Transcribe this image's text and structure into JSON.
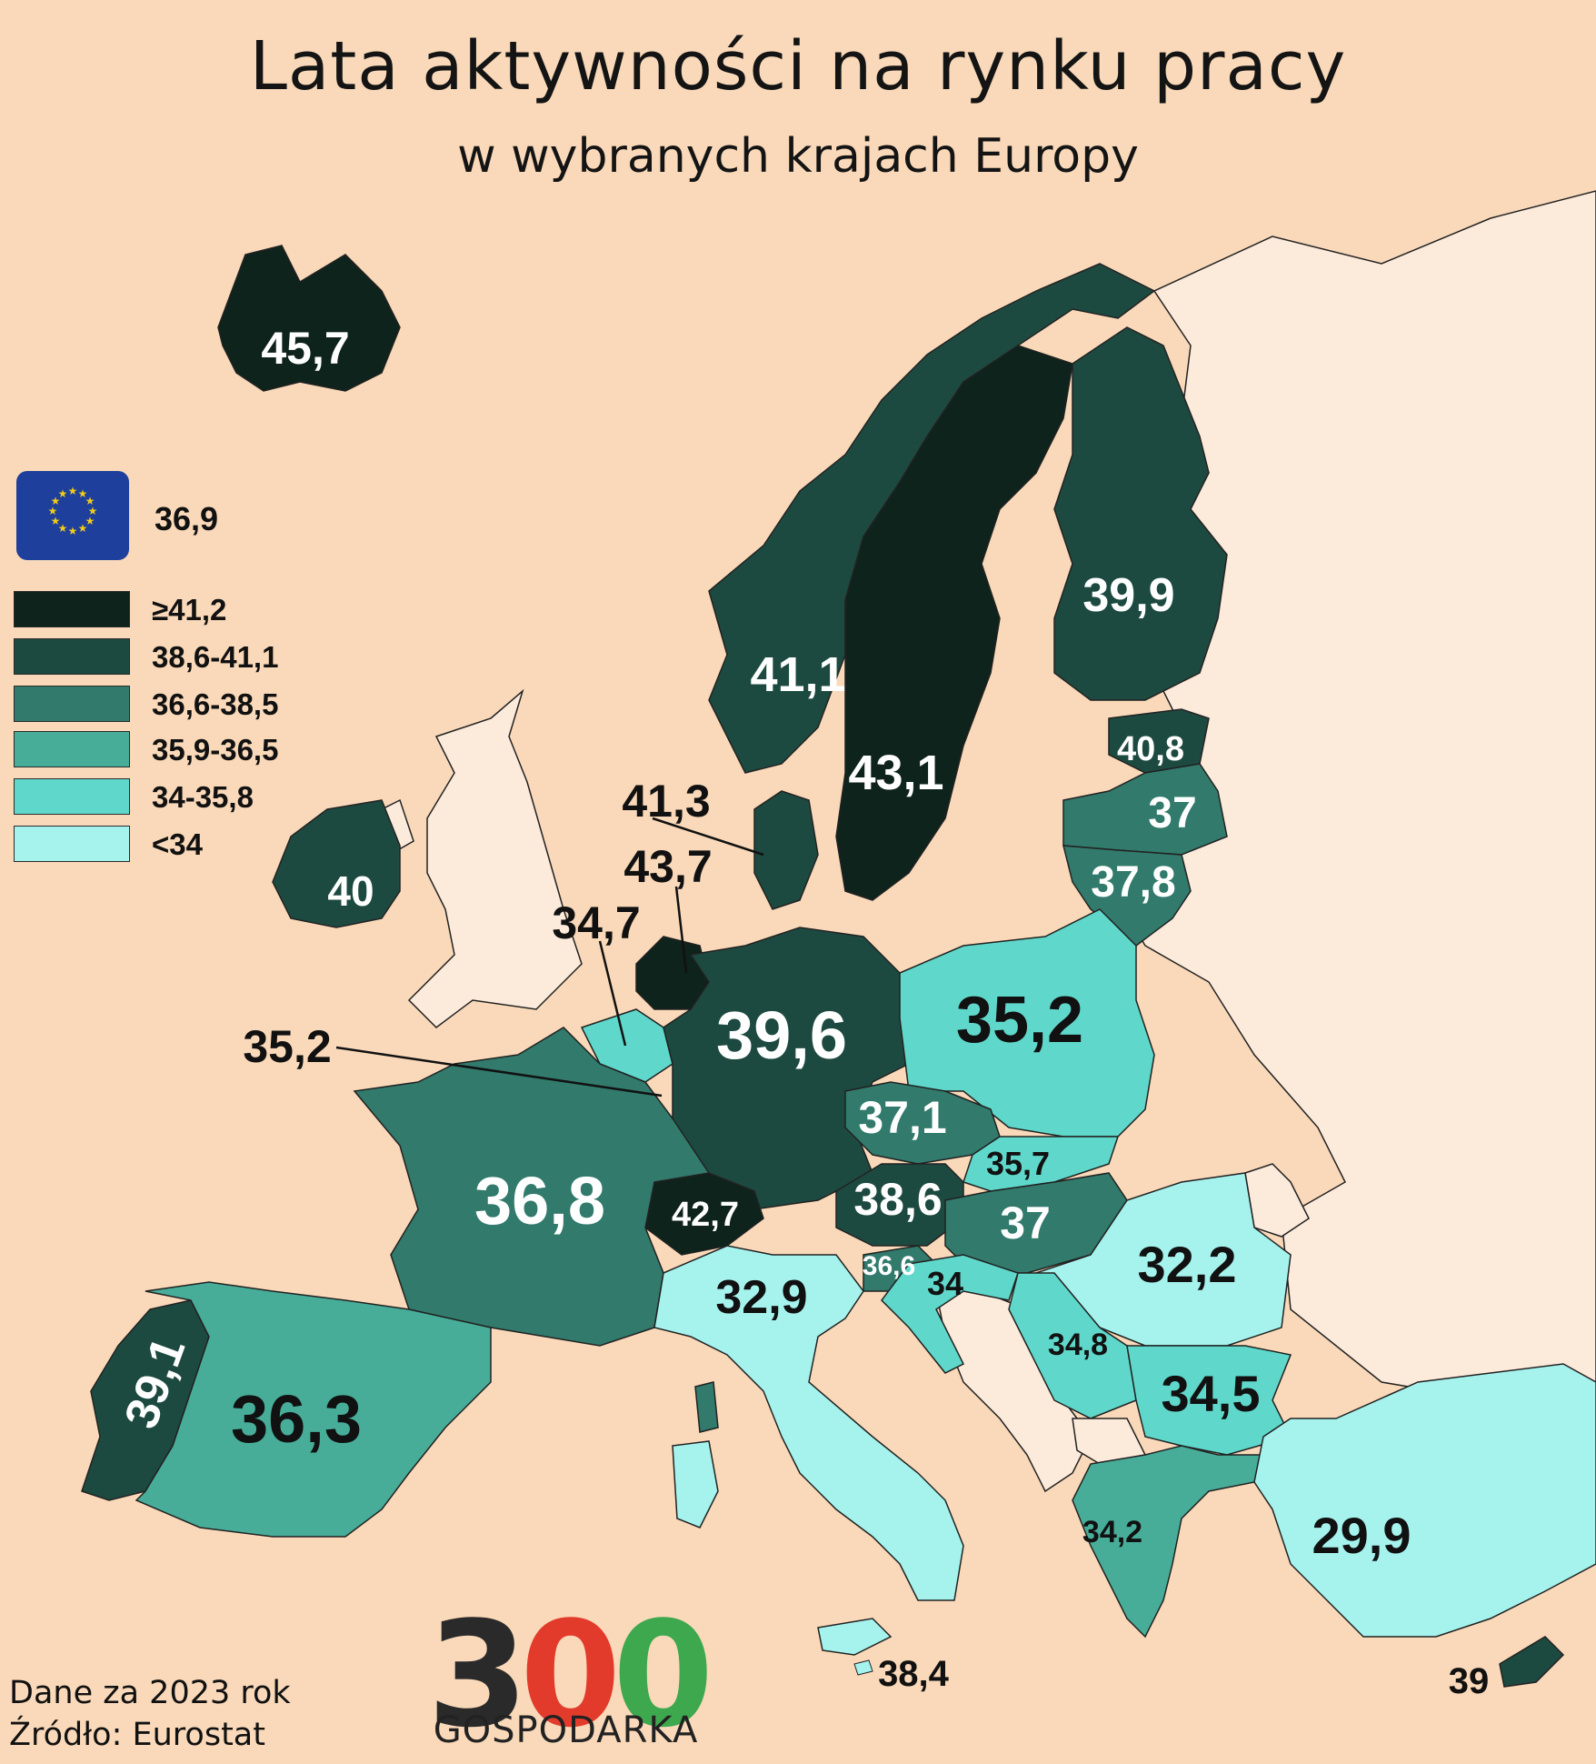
{
  "title": "Lata aktywności na rynku pracy",
  "subtitle": "w wybranych krajach Europy",
  "eu_average": "36,9",
  "legend": [
    {
      "label": "≥41,2",
      "color": "#0d231b"
    },
    {
      "label": "38,6-41,1",
      "color": "#1d4a40"
    },
    {
      "label": "36,6-38,5",
      "color": "#317a6c"
    },
    {
      "label": "35,9-36,5",
      "color": "#47ad99"
    },
    {
      "label": "34-35,8",
      "color": "#5fd8cb"
    },
    {
      "label": "<34",
      "color": "#a6f3ee"
    }
  ],
  "colors": {
    "background": "#f9d9b9",
    "non_covered_land": "#fceadb",
    "logo_dark": "#2a2a2a",
    "logo_red": "#e23b2c",
    "logo_green": "#3ea84f",
    "eu_flag": "#1f3f9c",
    "eu_star": "#f1cc17"
  },
  "countries": {
    "iceland": "45,7",
    "norway": "41,1",
    "sweden": "43,1",
    "finland": "39,9",
    "estonia": "40,8",
    "latvia": "37",
    "lithuania": "37,8",
    "denmark": "41,3",
    "netherlands": "43,7",
    "belgium": "34,7",
    "luxembourg": "35,2",
    "ireland": "40",
    "germany": "39,6",
    "poland": "35,2",
    "czechia": "37,1",
    "slovakia": "35,7",
    "austria": "38,6",
    "hungary": "37",
    "switzerland": "42,7",
    "france": "36,8",
    "slovenia": "36,6",
    "croatia": "34",
    "romania": "32,2",
    "italy": "32,9",
    "serbia": "34,8",
    "bulgaria": "34,5",
    "portugal": "39,1",
    "spain": "36,3",
    "greece": "34,2",
    "turkey": "29,9",
    "malta": "38,4",
    "cyprus": "39"
  },
  "footer": {
    "data_year": "Dane za 2023 rok",
    "source": "Źródło: Eurostat"
  },
  "logo": {
    "digit1": "3",
    "digit2": "0",
    "digit3": "0",
    "word": "GOSPODARKA"
  }
}
